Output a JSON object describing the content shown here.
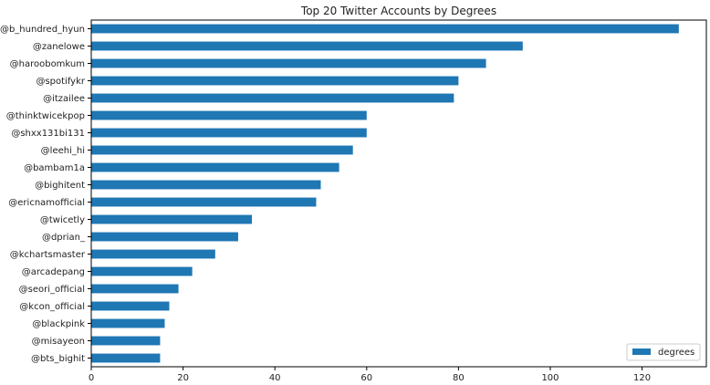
{
  "chart_data": {
    "type": "bar",
    "orientation": "horizontal",
    "title": "Top 20 Twitter Accounts by Degrees",
    "xlabel": "",
    "ylabel": "",
    "xlim": [
      0,
      134
    ],
    "xticks": [
      0,
      20,
      40,
      60,
      80,
      100,
      120
    ],
    "grid": false,
    "legend_position": "bottom-right",
    "color": "#1f77b4",
    "categories": [
      "@b_hundred_hyun",
      "@zanelowe",
      "@haroobomkum",
      "@spotifykr",
      "@itzailee",
      "@thinktwicekpop",
      "@shxx131bi131",
      "@leehi_hi",
      "@bambam1a",
      "@bighitent",
      "@ericnamofficial",
      "@twicetly",
      "@dprian_",
      "@kchartsmaster",
      "@arcadepang",
      "@seori_official",
      "@kcon_official",
      "@blackpink",
      "@misayeon",
      "@bts_bighit"
    ],
    "series": [
      {
        "name": "degrees",
        "values": [
          128,
          94,
          86,
          80,
          79,
          60,
          60,
          57,
          54,
          50,
          49,
          35,
          32,
          27,
          22,
          19,
          17,
          16,
          15,
          15
        ]
      }
    ]
  }
}
